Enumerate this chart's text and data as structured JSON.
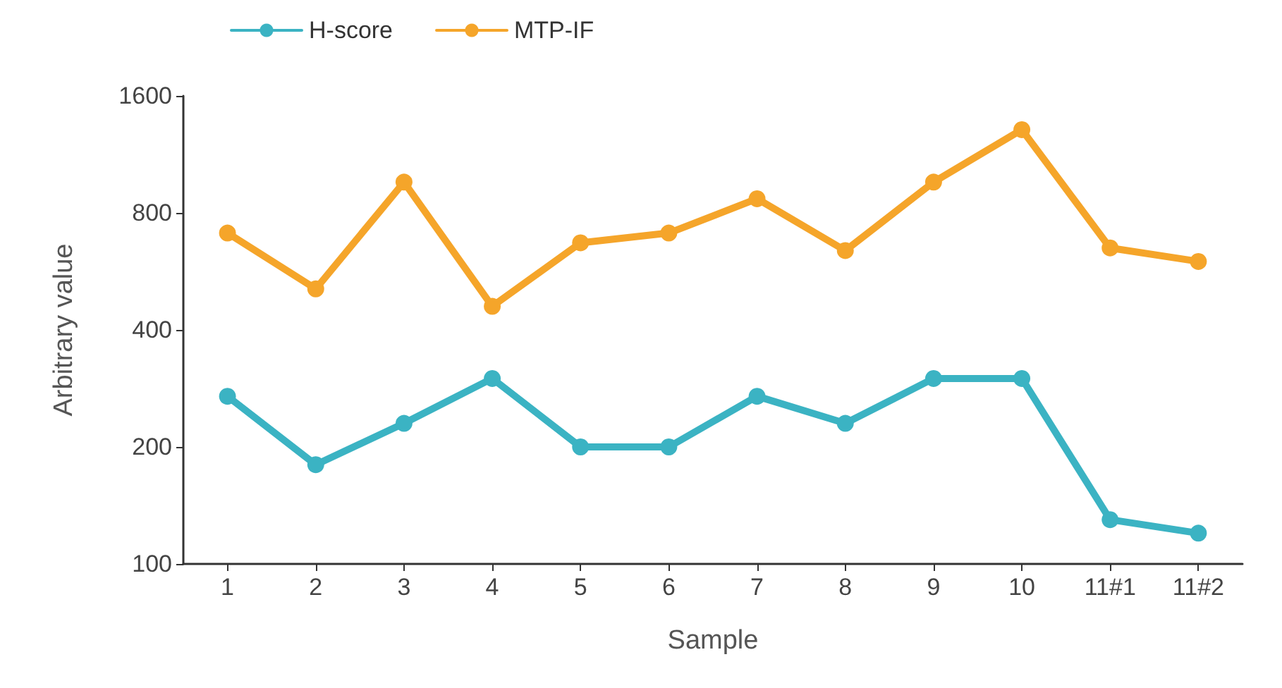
{
  "chart_data": {
    "type": "line",
    "xlabel": "Sample",
    "ylabel": "Arbitrary value",
    "categories": [
      "1",
      "2",
      "3",
      "4",
      "5",
      "6",
      "7",
      "8",
      "9",
      "10",
      "11#1",
      "11#2"
    ],
    "series": [
      {
        "name": "H-score",
        "color": "#3bb3c3",
        "values": [
          270,
          180,
          230,
          300,
          200,
          200,
          270,
          230,
          300,
          300,
          130,
          120
        ]
      },
      {
        "name": "MTP-IF",
        "color": "#f5a52a",
        "values": [
          710,
          510,
          960,
          460,
          670,
          710,
          870,
          640,
          960,
          1310,
          650,
          600
        ]
      }
    ],
    "log": "y",
    "ylim": [
      100,
      1600
    ],
    "yticks": [
      100,
      200,
      400,
      800,
      1600
    ],
    "grid": false,
    "legend": "top left",
    "marker": "circle",
    "line_style": "solid"
  }
}
